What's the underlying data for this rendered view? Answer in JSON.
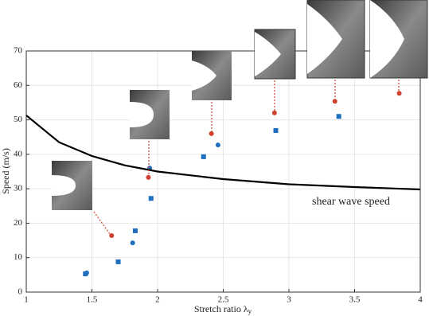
{
  "chart_data": {
    "type": "scatter",
    "x_label": "Stretch ratio λ",
    "x_label_subscript": "y",
    "y_label": "Speed (m/s)",
    "annotation": "shear wave speed",
    "xlim": [
      1,
      4
    ],
    "ylim": [
      0,
      70
    ],
    "xticks": [
      1,
      1.5,
      2,
      2.5,
      3,
      3.5,
      4
    ],
    "yticks": [
      0,
      10,
      20,
      30,
      40,
      50,
      60,
      70
    ],
    "grid": true,
    "series": [
      {
        "color": "#d0402f",
        "marker": "circle",
        "x": [
          1.65,
          1.93,
          2.41,
          2.89,
          3.35,
          3.84
        ],
        "values": [
          16.4,
          33.3,
          46,
          52,
          55.4,
          57.7
        ]
      },
      {
        "color": "#1f6fbf",
        "marker": "square",
        "x": [
          1.45,
          1.7,
          1.83,
          1.95,
          2.35,
          2.9,
          3.38
        ],
        "values": [
          5.3,
          8.8,
          17.8,
          27.2,
          39.3,
          46.9,
          51
        ]
      },
      {
        "color": "#1f6fbf",
        "marker": "circle",
        "x": [
          1.46,
          1.81,
          1.94,
          2.46
        ],
        "values": [
          5.6,
          14.3,
          36,
          42.7
        ]
      },
      {
        "color": "#000000",
        "marker": "line",
        "x": [
          1,
          1.25,
          1.5,
          1.75,
          2,
          2.5,
          3,
          3.5,
          4
        ],
        "values": [
          51.3,
          43.5,
          39.5,
          36.8,
          35,
          32.8,
          31.3,
          30.5,
          29.8
        ]
      }
    ]
  }
}
